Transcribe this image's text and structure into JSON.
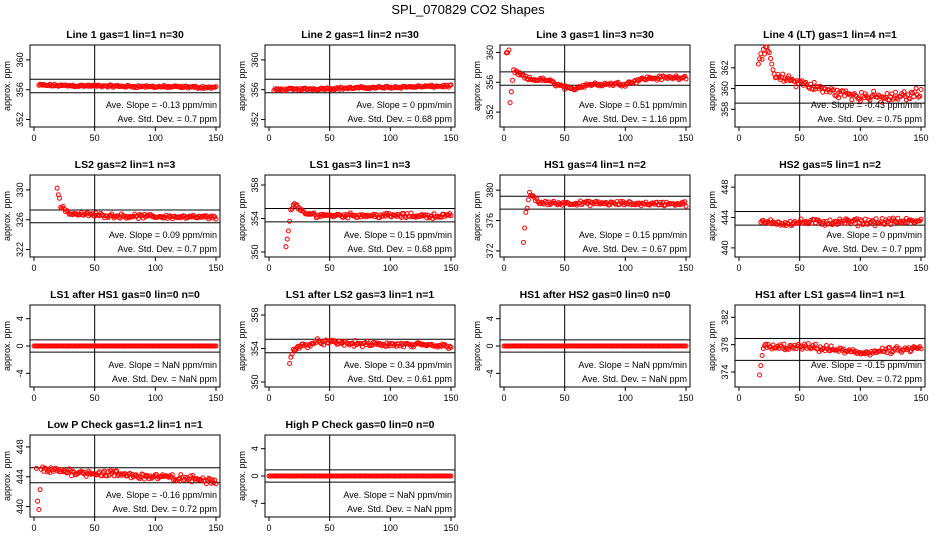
{
  "chart_data": {
    "type": "scatter",
    "title": "SPL_070829  CO2 Shapes",
    "ylabel": "approx. ppm",
    "xlim": [
      0,
      150
    ],
    "x_ticks": [
      0,
      50,
      100,
      150
    ],
    "slope_prefix": "Ave. Slope = ",
    "slope_unit": "ppm/min",
    "sd_prefix": "Ave. Std. Dev. = ",
    "sd_unit": "ppm",
    "panels": [
      {
        "title": "Line 1 gas=1 lin=1 n=30",
        "ylim": [
          351,
          362
        ],
        "yticks": [
          352,
          356,
          360
        ],
        "ref_lines": [
          357.4,
          355.6
        ],
        "slope": "-0.13",
        "std_dev": "0.7",
        "points": [
          [
            4,
            356.6
          ],
          [
            150,
            356.3
          ]
        ],
        "noise": 0.2,
        "x_start": 4
      },
      {
        "title": "Line 2 gas=1 lin=2 n=30",
        "ylim": [
          351,
          362
        ],
        "yticks": [
          352,
          356,
          360
        ],
        "ref_lines": [
          357.4,
          355.6
        ],
        "slope": "0",
        "std_dev": "0.68",
        "points": [
          [
            4,
            356.0
          ],
          [
            150,
            356.5
          ]
        ],
        "noise": 0.2,
        "x_start": 4
      },
      {
        "title": "Line 3 gas=1 lin=3 n=30",
        "ylim": [
          350,
          361
        ],
        "yticks": [
          352,
          356,
          360
        ],
        "ref_lines": [
          357.4,
          355.6
        ],
        "slope": "0.51",
        "std_dev": "1.16",
        "points": [
          [
            2,
            360
          ],
          [
            4,
            360
          ],
          [
            5,
            353.3
          ],
          [
            8,
            357.5
          ],
          [
            20,
            356.4
          ],
          [
            35,
            356.3
          ],
          [
            55,
            355
          ],
          [
            68,
            355.7
          ],
          [
            100,
            355.8
          ],
          [
            115,
            356.5
          ],
          [
            150,
            356.7
          ]
        ],
        "noise": 0.35,
        "x_start": 2
      },
      {
        "title": "Line 4 (LT) gas=1 lin=4 n=1",
        "ylim": [
          356.3,
          364.2
        ],
        "yticks": [
          358,
          360,
          362
        ],
        "ref_lines": [
          360.3,
          358.6
        ],
        "slope": "-0.43",
        "std_dev": "0.75",
        "points": [
          [
            16,
            362.5
          ],
          [
            18,
            363.3
          ],
          [
            22,
            363.6
          ],
          [
            26,
            363
          ],
          [
            30,
            361
          ],
          [
            40,
            360.9
          ],
          [
            50,
            360.6
          ],
          [
            60,
            360.2
          ],
          [
            80,
            359.6
          ],
          [
            100,
            359.3
          ],
          [
            120,
            359.1
          ],
          [
            140,
            359.3
          ],
          [
            150,
            359.8
          ]
        ],
        "noise": 0.6,
        "x_start": 16
      },
      {
        "title": "LS2 gas=2 lin=1 n=3",
        "ylim": [
          321,
          332
        ],
        "yticks": [
          322,
          326,
          330
        ],
        "ref_lines": [
          327.3,
          325.6
        ],
        "slope": "0.09",
        "std_dev": "0.7",
        "points": [
          [
            19,
            330.3
          ],
          [
            22,
            327.8
          ],
          [
            30,
            326.8
          ],
          [
            70,
            326.5
          ],
          [
            150,
            326.3
          ]
        ],
        "noise": 0.35,
        "x_start": 19
      },
      {
        "title": "LS1 gas=3 lin=1 n=3",
        "ylim": [
          349.4,
          359.2
        ],
        "yticks": [
          350,
          354,
          358
        ],
        "ref_lines": [
          355.2,
          353.6
        ],
        "slope": "0.15",
        "std_dev": "0.68",
        "points": [
          [
            14,
            350.4
          ],
          [
            16,
            352.6
          ],
          [
            18,
            355.2
          ],
          [
            22,
            355.7
          ],
          [
            28,
            354.6
          ],
          [
            40,
            354.4
          ],
          [
            150,
            354.3
          ]
        ],
        "noise": 0.35,
        "x_start": 14
      },
      {
        "title": "HS1 gas=4 lin=1 n=2",
        "ylim": [
          371.2,
          382
        ],
        "yticks": [
          372,
          376,
          380
        ],
        "ref_lines": [
          379.2,
          377.5
        ],
        "slope": "0.15",
        "std_dev": "0.67",
        "points": [
          [
            16,
            373.2
          ],
          [
            18,
            377
          ],
          [
            21,
            379.5
          ],
          [
            30,
            378.3
          ],
          [
            150,
            378.2
          ]
        ],
        "noise": 0.35,
        "x_start": 16
      },
      {
        "title": "HS2 gas=5 lin=1 n=2",
        "ylim": [
          438.8,
          449.6
        ],
        "yticks": [
          440,
          444,
          448
        ],
        "ref_lines": [
          444.8,
          443
        ],
        "slope": "0",
        "std_dev": "0.7",
        "points": [
          [
            18,
            443.3
          ],
          [
            150,
            443.5
          ]
        ],
        "noise": 0.55,
        "x_start": 18
      },
      {
        "title": "LS1 after HS1 gas=0 lin=0 n=0",
        "ylim": [
          -6,
          6
        ],
        "yticks": [
          -4,
          0,
          4
        ],
        "ref_lines": [
          0.9,
          -0.9
        ],
        "slope": "NaN",
        "std_dev": "NaN",
        "points": [
          [
            0,
            0
          ],
          [
            150,
            0
          ]
        ],
        "noise": 0,
        "x_start": 0
      },
      {
        "title": "LS1 after LS2 gas=3 lin=1 n=1",
        "ylim": [
          349.4,
          359.2
        ],
        "yticks": [
          350,
          354,
          358
        ],
        "ref_lines": [
          355.1,
          353.5
        ],
        "slope": "0.34",
        "std_dev": "0.61",
        "points": [
          [
            17,
            352.3
          ],
          [
            20,
            354
          ],
          [
            40,
            354.8
          ],
          [
            80,
            354.5
          ],
          [
            150,
            354.3
          ]
        ],
        "noise": 0.4,
        "x_start": 17
      },
      {
        "title": "HS1 after HS2 gas=0 lin=0 n=0",
        "ylim": [
          -6,
          6
        ],
        "yticks": [
          -4,
          0,
          4
        ],
        "ref_lines": [
          0.9,
          -0.9
        ],
        "slope": "NaN",
        "std_dev": "NaN",
        "points": [
          [
            0,
            0
          ],
          [
            150,
            0
          ]
        ],
        "noise": 0,
        "x_start": 0
      },
      {
        "title": "HS1 after LS1 gas=4 lin=1 n=1",
        "ylim": [
          371.8,
          383.8
        ],
        "yticks": [
          374,
          378,
          382
        ],
        "ref_lines": [
          378.9,
          375.7
        ],
        "slope": "-0.15",
        "std_dev": "0.72",
        "points": [
          [
            17,
            373.8
          ],
          [
            20,
            377.6
          ],
          [
            60,
            377.6
          ],
          [
            100,
            376.8
          ],
          [
            150,
            377.4
          ]
        ],
        "noise": 0.6,
        "x_start": 17
      },
      {
        "title": "Low P Check gas=1.2 lin=1 n=1",
        "ylim": [
          438.6,
          449.6
        ],
        "yticks": [
          440,
          444,
          448
        ],
        "ref_lines": [
          445.2,
          443.2
        ],
        "slope": "-0.16",
        "std_dev": "0.72",
        "points": [
          [
            2,
            445
          ],
          [
            3,
            441
          ],
          [
            4,
            439.5
          ],
          [
            6,
            444.9
          ],
          [
            40,
            444.6
          ],
          [
            80,
            444.2
          ],
          [
            150,
            443.5
          ]
        ],
        "noise": 0.6,
        "x_start": 2
      },
      {
        "title": "High P Check gas=0 lin=0 n=0",
        "ylim": [
          -6,
          6
        ],
        "yticks": [
          -4,
          0,
          4
        ],
        "ref_lines": [
          0.9,
          -0.9
        ],
        "slope": "NaN",
        "std_dev": "NaN",
        "points": [
          [
            0,
            0
          ],
          [
            150,
            0
          ]
        ],
        "noise": 0,
        "x_start": 0
      }
    ]
  }
}
